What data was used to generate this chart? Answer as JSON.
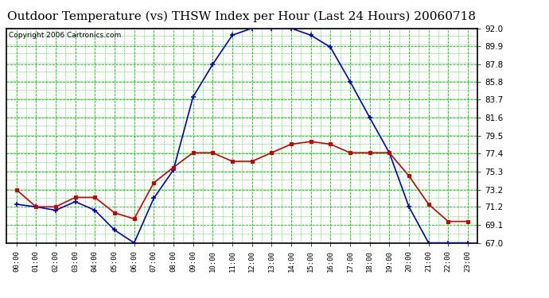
{
  "title": "Outdoor Temperature (vs) THSW Index per Hour (Last 24 Hours) 20060718",
  "copyright": "Copyright 2006 Cartronics.com",
  "hours": [
    0,
    1,
    2,
    3,
    4,
    5,
    6,
    7,
    8,
    9,
    10,
    11,
    12,
    13,
    14,
    15,
    16,
    17,
    18,
    19,
    20,
    21,
    22,
    23
  ],
  "hour_labels": [
    "00:00",
    "01:00",
    "02:00",
    "03:00",
    "04:00",
    "05:00",
    "06:00",
    "07:00",
    "08:00",
    "09:00",
    "10:00",
    "11:00",
    "12:00",
    "13:00",
    "14:00",
    "15:00",
    "16:00",
    "17:00",
    "18:00",
    "19:00",
    "20:00",
    "21:00",
    "22:00",
    "23:00"
  ],
  "temp": [
    73.2,
    71.2,
    71.2,
    72.3,
    72.3,
    70.5,
    69.8,
    74.0,
    75.8,
    77.5,
    77.5,
    76.5,
    76.5,
    77.5,
    78.5,
    78.8,
    78.5,
    77.5,
    77.5,
    77.5,
    74.8,
    71.5,
    69.5,
    69.5
  ],
  "thsw": [
    71.5,
    71.2,
    70.8,
    71.8,
    70.8,
    68.5,
    67.0,
    72.2,
    75.5,
    84.0,
    87.8,
    91.2,
    92.0,
    92.0,
    92.0,
    91.2,
    89.8,
    85.8,
    81.6,
    77.5,
    71.2,
    67.0,
    67.0,
    67.0
  ],
  "ylim_min": 67.0,
  "ylim_max": 92.0,
  "yticks": [
    67.0,
    69.1,
    71.2,
    73.2,
    75.3,
    77.4,
    79.5,
    81.6,
    83.7,
    85.8,
    87.8,
    89.9,
    92.0
  ],
  "temp_color": "#cc0000",
  "thsw_color": "#0000cc",
  "bg_color": "#ffffff",
  "plot_bg_color": "#ffffff",
  "grid_color": "#00cc00",
  "title_fontsize": 11,
  "copyright_fontsize": 6.5
}
